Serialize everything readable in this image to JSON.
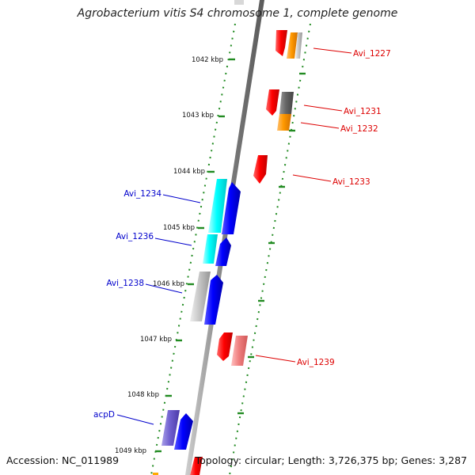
{
  "title": "Agrobacterium vitis S4 chromosome 1, complete genome",
  "accession": "Accession: NC_011989",
  "topology": "Topology: circular; Length: 3,726,375 bp; Genes: 3,287",
  "ruler": [
    {
      "label": "1042 kbp"
    },
    {
      "label": "1043 kbp"
    },
    {
      "label": "1044 kbp"
    },
    {
      "label": "1045 kbp"
    },
    {
      "label": "1046 kbp"
    },
    {
      "label": "1047 kbp"
    },
    {
      "label": "1048 kbp"
    },
    {
      "label": "1049 kbp"
    }
  ],
  "gene_labels": [
    {
      "name": "Avi_1227",
      "color": "#dd0000"
    },
    {
      "name": "Avi_1231",
      "color": "#dd0000"
    },
    {
      "name": "Avi_1232",
      "color": "#dd0000"
    },
    {
      "name": "Avi_1233",
      "color": "#dd0000"
    },
    {
      "name": "Avi_1234",
      "color": "#0000cc"
    },
    {
      "name": "Avi_1236",
      "color": "#0000cc"
    },
    {
      "name": "Avi_1238",
      "color": "#0000cc"
    },
    {
      "name": "Avi_1239",
      "color": "#dd0000"
    },
    {
      "name": "acpD",
      "color": "#0000cc"
    }
  ]
}
